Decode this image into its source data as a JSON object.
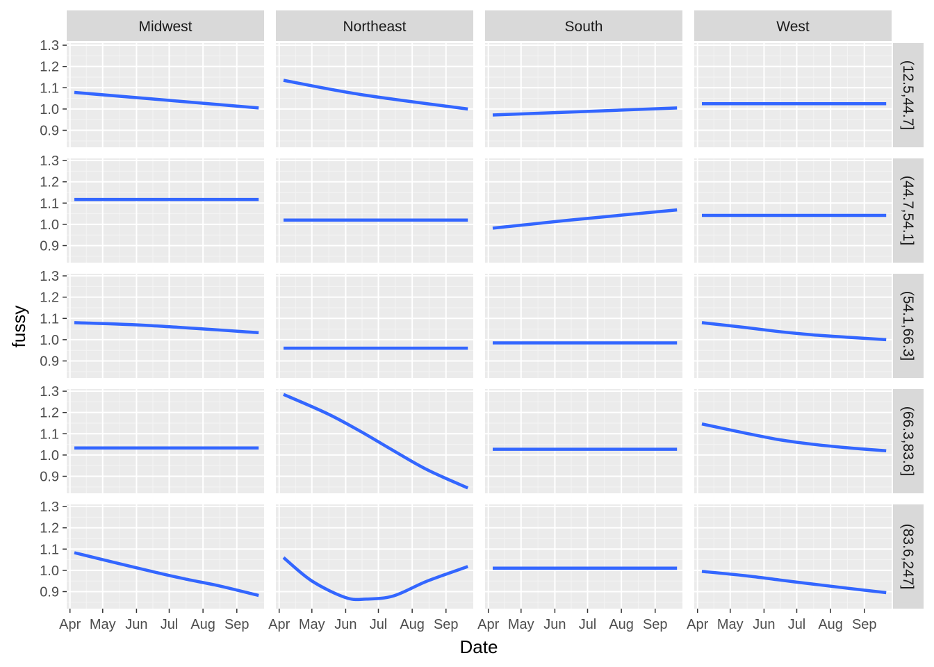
{
  "chart_data": {
    "type": "line",
    "layout": "facet_grid",
    "xlabel": "Date",
    "ylabel": "fussy",
    "x_ticks": [
      "Apr",
      "May",
      "Jun",
      "Jul",
      "Aug",
      "Sep"
    ],
    "x_tick_dates": [
      "2020-04-01",
      "2020-05-01",
      "2020-06-01",
      "2020-07-01",
      "2020-08-01",
      "2020-09-01"
    ],
    "xlim": [
      "2020-03-29",
      "2020-09-26"
    ],
    "line_x_range": [
      "2020-04-05",
      "2020-09-21"
    ],
    "y_ticks": [
      "0.9",
      "1.0",
      "1.1",
      "1.2",
      "1.3"
    ],
    "ylim": [
      0.82,
      1.31
    ],
    "columns": [
      "Midwest",
      "Northeast",
      "South",
      "West"
    ],
    "rows": [
      "(12.5,44.7]",
      "(44.7,54.1]",
      "(54.1,66.3]",
      "(66.3,83.6]",
      "(83.6,247]"
    ],
    "line_color": "#3366FF",
    "panel_background": "#EBEBEB",
    "strip_background": "#D9D9D9",
    "grid": true,
    "series": [
      [
        {
          "name": "",
          "x": [
            "2020-04-05",
            "2020-09-21"
          ],
          "y": [
            1.078,
            1.005
          ]
        },
        {
          "name": "",
          "x": [
            "2020-04-05",
            "2020-06-15",
            "2020-09-21"
          ],
          "y": [
            1.135,
            1.068,
            1.0
          ]
        },
        {
          "name": "",
          "x": [
            "2020-04-05",
            "2020-09-21"
          ],
          "y": [
            0.972,
            1.005
          ]
        },
        {
          "name": "",
          "x": [
            "2020-04-05",
            "2020-09-21"
          ],
          "y": [
            1.025,
            1.025
          ]
        }
      ],
      [
        {
          "name": "",
          "x": [
            "2020-04-05",
            "2020-09-21"
          ],
          "y": [
            1.117,
            1.117
          ]
        },
        {
          "name": "",
          "x": [
            "2020-04-05",
            "2020-09-21"
          ],
          "y": [
            1.02,
            1.02
          ]
        },
        {
          "name": "",
          "x": [
            "2020-04-05",
            "2020-06-15",
            "2020-09-21"
          ],
          "y": [
            0.982,
            1.02,
            1.068
          ]
        },
        {
          "name": "",
          "x": [
            "2020-04-05",
            "2020-09-21"
          ],
          "y": [
            1.042,
            1.042
          ]
        }
      ],
      [
        {
          "name": "",
          "x": [
            "2020-04-05",
            "2020-06-15",
            "2020-09-21"
          ],
          "y": [
            1.08,
            1.066,
            1.033
          ]
        },
        {
          "name": "",
          "x": [
            "2020-04-05",
            "2020-09-21"
          ],
          "y": [
            0.96,
            0.96
          ]
        },
        {
          "name": "",
          "x": [
            "2020-04-05",
            "2020-09-21"
          ],
          "y": [
            0.985,
            0.985
          ]
        },
        {
          "name": "",
          "x": [
            "2020-04-05",
            "2020-05-15",
            "2020-06-15",
            "2020-07-15",
            "2020-08-15",
            "2020-09-21"
          ],
          "y": [
            1.08,
            1.057,
            1.038,
            1.023,
            1.012,
            1.0
          ]
        }
      ],
      [
        {
          "name": "",
          "x": [
            "2020-04-05",
            "2020-09-21"
          ],
          "y": [
            1.033,
            1.033
          ]
        },
        {
          "name": "",
          "x": [
            "2020-04-05",
            "2020-05-15",
            "2020-06-15",
            "2020-07-15",
            "2020-08-15",
            "2020-09-21"
          ],
          "y": [
            1.285,
            1.195,
            1.11,
            1.02,
            0.93,
            0.845
          ]
        },
        {
          "name": "",
          "x": [
            "2020-04-05",
            "2020-09-21"
          ],
          "y": [
            1.027,
            1.027
          ]
        },
        {
          "name": "",
          "x": [
            "2020-04-05",
            "2020-05-15",
            "2020-06-15",
            "2020-07-15",
            "2020-08-15",
            "2020-09-21"
          ],
          "y": [
            1.146,
            1.103,
            1.072,
            1.051,
            1.035,
            1.02
          ]
        }
      ],
      [
        {
          "name": "",
          "x": [
            "2020-04-05",
            "2020-05-15",
            "2020-06-15",
            "2020-07-15",
            "2020-08-15",
            "2020-09-21"
          ],
          "y": [
            1.083,
            1.033,
            0.995,
            0.96,
            0.928,
            0.882
          ]
        },
        {
          "name": "",
          "x": [
            "2020-04-05",
            "2020-05-01",
            "2020-06-01",
            "2020-06-20",
            "2020-07-15",
            "2020-08-15",
            "2020-09-21"
          ],
          "y": [
            1.06,
            0.95,
            0.872,
            0.865,
            0.88,
            0.95,
            1.018
          ]
        },
        {
          "name": "",
          "x": [
            "2020-04-05",
            "2020-09-21"
          ],
          "y": [
            1.01,
            1.01
          ]
        },
        {
          "name": "",
          "x": [
            "2020-04-05",
            "2020-05-15",
            "2020-06-15",
            "2020-07-15",
            "2020-08-15",
            "2020-09-21"
          ],
          "y": [
            0.995,
            0.975,
            0.955,
            0.936,
            0.917,
            0.895
          ]
        }
      ]
    ]
  }
}
